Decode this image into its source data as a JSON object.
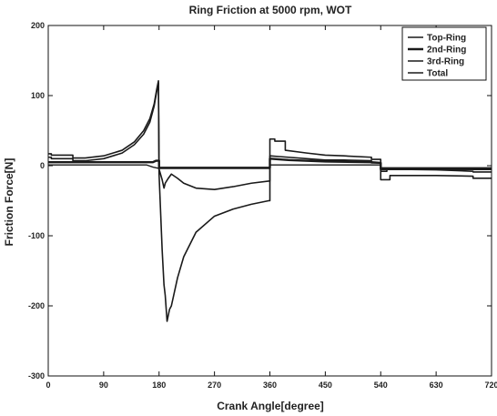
{
  "chart_data": {
    "type": "line",
    "title": "Ring Friction at 5000 rpm, WOT",
    "xlabel": "Crank Angle[degree]",
    "ylabel": "Friction Force[N]",
    "xlim": [
      0,
      720
    ],
    "ylim": [
      -300,
      200
    ],
    "xticks": [
      0,
      90,
      180,
      270,
      360,
      450,
      540,
      630,
      720
    ],
    "yticks": [
      -300,
      -200,
      -100,
      0,
      100,
      200
    ],
    "grid": false,
    "legend_position": "top-right",
    "line_color": "#1a1a1a",
    "series": [
      {
        "name": "Top-Ring",
        "points": [
          [
            0,
            12
          ],
          [
            5,
            12
          ],
          [
            5,
            10
          ],
          [
            40,
            10
          ],
          [
            40,
            7
          ],
          [
            60,
            7
          ],
          [
            90,
            10
          ],
          [
            120,
            18
          ],
          [
            140,
            30
          ],
          [
            155,
            45
          ],
          [
            165,
            62
          ],
          [
            172,
            85
          ],
          [
            176,
            105
          ],
          [
            179,
            118
          ],
          [
            180,
            -5
          ],
          [
            185,
            -20
          ],
          [
            188,
            -32
          ],
          [
            190,
            -25
          ],
          [
            195,
            -18
          ],
          [
            200,
            -12
          ],
          [
            210,
            -18
          ],
          [
            220,
            -25
          ],
          [
            240,
            -32
          ],
          [
            270,
            -34
          ],
          [
            300,
            -30
          ],
          [
            330,
            -25
          ],
          [
            358,
            -22
          ],
          [
            360,
            -22
          ],
          [
            360,
            14
          ],
          [
            375,
            13
          ],
          [
            390,
            12
          ],
          [
            420,
            10
          ],
          [
            450,
            8
          ],
          [
            480,
            8
          ],
          [
            525,
            7
          ],
          [
            525,
            4
          ],
          [
            540,
            4
          ],
          [
            540,
            -8
          ],
          [
            550,
            -8
          ],
          [
            550,
            -5
          ],
          [
            630,
            -6
          ],
          [
            690,
            -8
          ],
          [
            690,
            -9
          ],
          [
            720,
            -9
          ]
        ]
      },
      {
        "name": "2nd-Ring",
        "points": [
          [
            0,
            5
          ],
          [
            90,
            5
          ],
          [
            130,
            5
          ],
          [
            160,
            5
          ],
          [
            170,
            5
          ],
          [
            175,
            7
          ],
          [
            180,
            7
          ],
          [
            180,
            -3
          ],
          [
            360,
            -3
          ],
          [
            360,
            10
          ],
          [
            375,
            9
          ],
          [
            390,
            8
          ],
          [
            450,
            6
          ],
          [
            525,
            5
          ],
          [
            540,
            4
          ],
          [
            540,
            -5
          ],
          [
            720,
            -5
          ]
        ]
      },
      {
        "name": "3rd-Ring",
        "points": [
          [
            0,
            1
          ],
          [
            160,
            1
          ],
          [
            170,
            -2
          ],
          [
            180,
            -4
          ],
          [
            180,
            -4
          ],
          [
            360,
            -4
          ],
          [
            360,
            1
          ],
          [
            540,
            1
          ],
          [
            540,
            -3
          ],
          [
            720,
            -3
          ]
        ]
      },
      {
        "name": "Total",
        "points": [
          [
            0,
            17
          ],
          [
            5,
            17
          ],
          [
            5,
            15
          ],
          [
            40,
            15
          ],
          [
            40,
            11
          ],
          [
            60,
            11
          ],
          [
            90,
            14
          ],
          [
            120,
            22
          ],
          [
            140,
            34
          ],
          [
            155,
            50
          ],
          [
            165,
            67
          ],
          [
            172,
            88
          ],
          [
            176,
            108
          ],
          [
            179,
            121
          ],
          [
            180,
            -12
          ],
          [
            185,
            -120
          ],
          [
            188,
            -170
          ],
          [
            190,
            -185
          ],
          [
            193,
            -222
          ],
          [
            197,
            -205
          ],
          [
            200,
            -200
          ],
          [
            210,
            -160
          ],
          [
            220,
            -130
          ],
          [
            240,
            -95
          ],
          [
            270,
            -72
          ],
          [
            300,
            -62
          ],
          [
            330,
            -55
          ],
          [
            358,
            -50
          ],
          [
            360,
            -50
          ],
          [
            360,
            38
          ],
          [
            368,
            38
          ],
          [
            368,
            35
          ],
          [
            385,
            35
          ],
          [
            385,
            22
          ],
          [
            420,
            18
          ],
          [
            450,
            15
          ],
          [
            480,
            14
          ],
          [
            525,
            12
          ],
          [
            525,
            9
          ],
          [
            540,
            9
          ],
          [
            540,
            -20
          ],
          [
            555,
            -20
          ],
          [
            555,
            -14
          ],
          [
            630,
            -14
          ],
          [
            690,
            -15
          ],
          [
            690,
            -18
          ],
          [
            720,
            -18
          ]
        ]
      }
    ]
  }
}
